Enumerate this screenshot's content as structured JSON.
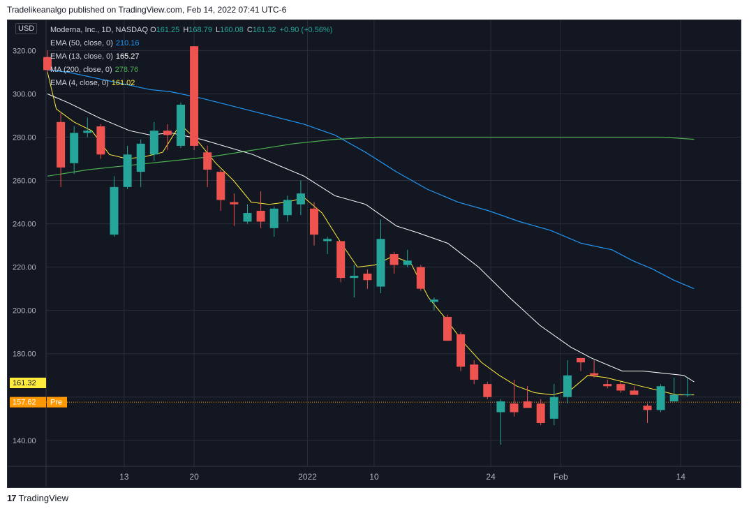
{
  "header": {
    "published_line": "Tradelikeanalgo published on TradingView.com, Feb 14, 2022 07:41 UTC-6"
  },
  "currency": "USD",
  "legend": {
    "symbol": "Moderna, Inc., 1D, NASDAQ",
    "o_label": "O",
    "o_value": "161.25",
    "h_label": "H",
    "h_value": "168.79",
    "l_label": "L",
    "l_value": "160.08",
    "c_label": "C",
    "c_value": "161.32",
    "change": "+0.90 (+0.56%)",
    "indicators": [
      {
        "label": "EMA (50, close, 0)",
        "value": "210.16",
        "color": "#2196f3"
      },
      {
        "label": "EMA (13, close, 0)",
        "value": "165.27",
        "color": "#ffffff"
      },
      {
        "label": "MA (200, close, 0)",
        "value": "278.76",
        "color": "#4caf50"
      },
      {
        "label": "EMA (4, close, 0)",
        "value": "161.02",
        "color": "#ffeb3b"
      }
    ]
  },
  "footer": {
    "brand": "TradingView",
    "logo": "17"
  },
  "chart_data": {
    "type": "candlestick",
    "ylim": [
      128,
      334
    ],
    "y_ticks": [
      140,
      160,
      180,
      200,
      220,
      240,
      260,
      280,
      300,
      320
    ],
    "y_tick_labels": [
      "140.00",
      "",
      "180.00",
      "200.00",
      "220.00",
      "240.00",
      "260.00",
      "280.00",
      "300.00",
      "320.00"
    ],
    "x_ticks": [
      {
        "label": "13",
        "idx": 5.75
      },
      {
        "label": "20",
        "idx": 11
      },
      {
        "label": "2022",
        "idx": 19.5
      },
      {
        "label": "10",
        "idx": 24.5
      },
      {
        "label": "24",
        "idx": 33.25
      },
      {
        "label": "Feb",
        "idx": 38.5
      },
      {
        "label": "14",
        "idx": 47.5
      }
    ],
    "price_labels": [
      {
        "text": "161.32",
        "price": 161.32,
        "color": "#ffeb3b",
        "text_color": "#131722"
      },
      {
        "text": "157.62",
        "price": 157.62,
        "color": "#ff9800",
        "text_color": "#ffffff",
        "tag": "Pre"
      }
    ],
    "premarket_price": 157.62,
    "colors": {
      "up": "#26a69a",
      "down": "#ef5350",
      "ema50": "#2196f3",
      "ema13": "#ffffff",
      "ma200": "#4caf50",
      "ema4": "#ffeb3b"
    },
    "candles": [
      {
        "o": 317,
        "h": 320,
        "l": 310,
        "c": 311
      },
      {
        "o": 287,
        "h": 291,
        "l": 257,
        "c": 266
      },
      {
        "o": 268,
        "h": 285,
        "l": 263,
        "c": 282
      },
      {
        "o": 282,
        "h": 289,
        "l": 280,
        "c": 283
      },
      {
        "o": 285,
        "h": 286,
        "l": 270,
        "c": 272
      },
      {
        "o": 235,
        "h": 262,
        "l": 234,
        "c": 257
      },
      {
        "o": 257,
        "h": 276,
        "l": 256,
        "c": 272
      },
      {
        "o": 264,
        "h": 279,
        "l": 257,
        "c": 277
      },
      {
        "o": 272,
        "h": 287,
        "l": 269,
        "c": 283
      },
      {
        "o": 283,
        "h": 286,
        "l": 274,
        "c": 281
      },
      {
        "o": 276,
        "h": 296,
        "l": 275,
        "c": 295
      },
      {
        "o": 322,
        "h": 322,
        "l": 274,
        "c": 276
      },
      {
        "o": 273,
        "h": 276,
        "l": 257,
        "c": 265
      },
      {
        "o": 264,
        "h": 265,
        "l": 246,
        "c": 251
      },
      {
        "o": 250,
        "h": 254,
        "l": 239,
        "c": 249
      },
      {
        "o": 241,
        "h": 249,
        "l": 240,
        "c": 245
      },
      {
        "o": 246,
        "h": 255,
        "l": 238,
        "c": 241
      },
      {
        "o": 238,
        "h": 248,
        "l": 234,
        "c": 247
      },
      {
        "o": 244,
        "h": 253,
        "l": 241,
        "c": 251
      },
      {
        "o": 249,
        "h": 260,
        "l": 244,
        "c": 254
      },
      {
        "o": 247,
        "h": 250,
        "l": 230,
        "c": 235
      },
      {
        "o": 232,
        "h": 234,
        "l": 226,
        "c": 233
      },
      {
        "o": 232,
        "h": 232,
        "l": 213,
        "c": 215
      },
      {
        "o": 215,
        "h": 221,
        "l": 206,
        "c": 216
      },
      {
        "o": 217,
        "h": 219,
        "l": 210,
        "c": 214
      },
      {
        "o": 211,
        "h": 242,
        "l": 208,
        "c": 233
      },
      {
        "o": 226,
        "h": 227,
        "l": 217,
        "c": 221
      },
      {
        "o": 221,
        "h": 228,
        "l": 220,
        "c": 223
      },
      {
        "o": 220,
        "h": 221,
        "l": 209,
        "c": 210
      },
      {
        "o": 204,
        "h": 206,
        "l": 200,
        "c": 205
      },
      {
        "o": 197,
        "h": 198,
        "l": 186,
        "c": 186
      },
      {
        "o": 189,
        "h": 190,
        "l": 172,
        "c": 174
      },
      {
        "o": 175,
        "h": 177,
        "l": 166,
        "c": 168
      },
      {
        "o": 166,
        "h": 167,
        "l": 159,
        "c": 160
      },
      {
        "o": 153,
        "h": 159,
        "l": 138,
        "c": 158
      },
      {
        "o": 157,
        "h": 168,
        "l": 151,
        "c": 153
      },
      {
        "o": 158,
        "h": 165,
        "l": 155,
        "c": 155
      },
      {
        "o": 157,
        "h": 159,
        "l": 147,
        "c": 148
      },
      {
        "o": 150,
        "h": 166,
        "l": 147,
        "c": 160
      },
      {
        "o": 160,
        "h": 177,
        "l": 157,
        "c": 170
      },
      {
        "o": 178,
        "h": 178,
        "l": 172,
        "c": 176
      },
      {
        "o": 171,
        "h": 177,
        "l": 169,
        "c": 170
      },
      {
        "o": 166,
        "h": 168,
        "l": 164,
        "c": 165
      },
      {
        "o": 166,
        "h": 167,
        "l": 162,
        "c": 163
      },
      {
        "o": 163,
        "h": 165,
        "l": 161,
        "c": 161
      },
      {
        "o": 156,
        "h": 157,
        "l": 148,
        "c": 154
      },
      {
        "o": 154,
        "h": 166,
        "l": 153,
        "c": 165
      },
      {
        "o": 158,
        "h": 169,
        "l": 158,
        "c": 161
      },
      {
        "o": 161.25,
        "h": 168.79,
        "l": 160.08,
        "c": 161.32
      }
    ],
    "ema50": [
      [
        0,
        311
      ],
      [
        2,
        310
      ],
      [
        5,
        307
      ],
      [
        8,
        304
      ],
      [
        10,
        302
      ],
      [
        12,
        301
      ],
      [
        15,
        298
      ],
      [
        20,
        292
      ],
      [
        25,
        286
      ],
      [
        28,
        281
      ],
      [
        31,
        273
      ],
      [
        34,
        264
      ],
      [
        37,
        256
      ],
      [
        40,
        250
      ],
      [
        43,
        246
      ],
      [
        46,
        241
      ],
      [
        49,
        237
      ],
      [
        52,
        231
      ],
      [
        55,
        228
      ],
      [
        57,
        223
      ],
      [
        59,
        219
      ],
      [
        61,
        214
      ],
      [
        63,
        210
      ]
    ],
    "ema13": [
      [
        0,
        300
      ],
      [
        2,
        296
      ],
      [
        5,
        289
      ],
      [
        8,
        283
      ],
      [
        10,
        281
      ],
      [
        12,
        282
      ],
      [
        15,
        279
      ],
      [
        20,
        272
      ],
      [
        25,
        262
      ],
      [
        28,
        253
      ],
      [
        31,
        249
      ],
      [
        34,
        239
      ],
      [
        36,
        236
      ],
      [
        39,
        231
      ],
      [
        42,
        220
      ],
      [
        45,
        206
      ],
      [
        48,
        193
      ],
      [
        51,
        183
      ],
      [
        53,
        178
      ],
      [
        56,
        172
      ],
      [
        58,
        172
      ],
      [
        60,
        171
      ],
      [
        62,
        170
      ],
      [
        63,
        167
      ]
    ],
    "ma200": [
      [
        0,
        262
      ],
      [
        4,
        265
      ],
      [
        8,
        267
      ],
      [
        12,
        269
      ],
      [
        16,
        271
      ],
      [
        20,
        274
      ],
      [
        24,
        277
      ],
      [
        28,
        279
      ],
      [
        32,
        280
      ],
      [
        36,
        280
      ],
      [
        40,
        280
      ],
      [
        44,
        280
      ],
      [
        48,
        280
      ],
      [
        52,
        280
      ],
      [
        56,
        280
      ],
      [
        60,
        280
      ],
      [
        63,
        279
      ]
    ],
    "ema4": [
      [
        0,
        310
      ],
      [
        1,
        293
      ],
      [
        3,
        287
      ],
      [
        5,
        283
      ],
      [
        7,
        272
      ],
      [
        9,
        270
      ],
      [
        11,
        271
      ],
      [
        13,
        273
      ],
      [
        15,
        286
      ],
      [
        17,
        278
      ],
      [
        19,
        268
      ],
      [
        21,
        260
      ],
      [
        23,
        250
      ],
      [
        25,
        249
      ],
      [
        27,
        250
      ],
      [
        29,
        252
      ],
      [
        31,
        245
      ],
      [
        33,
        232
      ],
      [
        35,
        220
      ],
      [
        37,
        221
      ],
      [
        39,
        225
      ],
      [
        41,
        222
      ],
      [
        43,
        206
      ],
      [
        45,
        196
      ],
      [
        47,
        185
      ],
      [
        49,
        176
      ],
      [
        51,
        170
      ],
      [
        53,
        165
      ],
      [
        55,
        162
      ],
      [
        57,
        161
      ],
      [
        59,
        163
      ],
      [
        61,
        170
      ],
      [
        63,
        169
      ],
      [
        65,
        167
      ],
      [
        67,
        165
      ],
      [
        69,
        163
      ],
      [
        71,
        161
      ],
      [
        73,
        161
      ]
    ]
  }
}
